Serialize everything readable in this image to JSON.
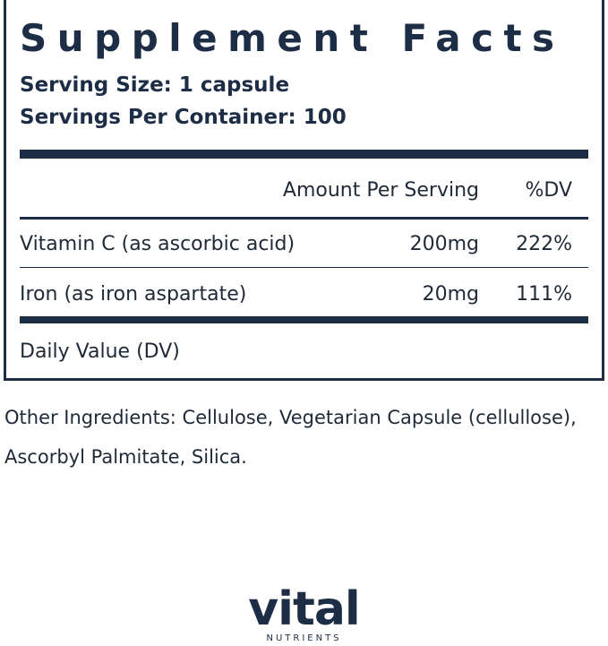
{
  "header": {
    "title": "Supplement Facts",
    "serving_size": "Serving Size: 1 capsule",
    "servings_per_container": "Servings Per Container: 100"
  },
  "table": {
    "columns": [
      "Amount Per Serving",
      "%DV"
    ],
    "rows": [
      [
        "Vitamin C (as ascorbic acid)",
        "200mg",
        "222%"
      ],
      [
        "Iron (as iron aspartate)",
        "20mg",
        "111%"
      ]
    ],
    "footnote": "Daily Value (DV)"
  },
  "other_ingredients": "Other Ingredients: Cellulose, Vegetarian Capsule (cellullose), Ascorbyl Palmitate, Silica.",
  "logo": {
    "name": "vital",
    "subtitle": "NUTRIENTS"
  }
}
